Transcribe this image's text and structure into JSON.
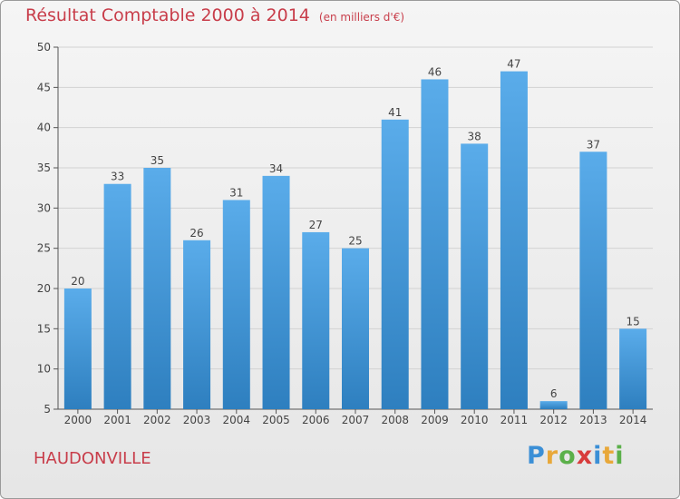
{
  "chart_data": {
    "type": "bar",
    "title": "Résultat Comptable 2000 à 2014",
    "subtitle": "(en milliers d'€)",
    "categories": [
      "2000",
      "2001",
      "2002",
      "2003",
      "2004",
      "2005",
      "2006",
      "2007",
      "2008",
      "2009",
      "2010",
      "2011",
      "2012",
      "2013",
      "2014"
    ],
    "values": [
      20,
      33,
      35,
      26,
      31,
      34,
      27,
      25,
      41,
      46,
      38,
      47,
      6,
      37,
      15
    ],
    "ylim": [
      5,
      50
    ],
    "yticks": [
      5,
      10,
      15,
      20,
      25,
      30,
      35,
      40,
      45,
      50
    ],
    "grid": true,
    "bar_color_top": "#5aacea",
    "bar_color_bottom": "#2e7fbf"
  },
  "commune": "HAUDONVILLE",
  "logo": {
    "letters": [
      "P",
      "r",
      "o",
      "x",
      "i",
      "t",
      "i"
    ],
    "colors": [
      "#3b8fd6",
      "#e8a83a",
      "#5bb04a",
      "#d83b3b",
      "#3b8fd6",
      "#e8a83a",
      "#5bb04a"
    ]
  }
}
